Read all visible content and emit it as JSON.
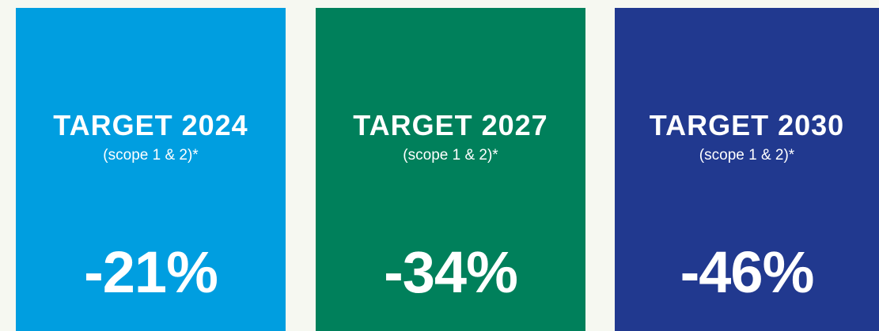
{
  "cards": [
    {
      "title": "TARGET 2024",
      "subtitle": "(scope 1 & 2)*",
      "value": "-21%",
      "color": "#009ee0"
    },
    {
      "title": "TARGET 2027",
      "subtitle": "(scope 1 & 2)*",
      "value": "-34%",
      "color": "#00805b"
    },
    {
      "title": "TARGET 2030",
      "subtitle": "(scope 1 & 2)*",
      "value": "-46%",
      "color": "#21398f"
    }
  ]
}
